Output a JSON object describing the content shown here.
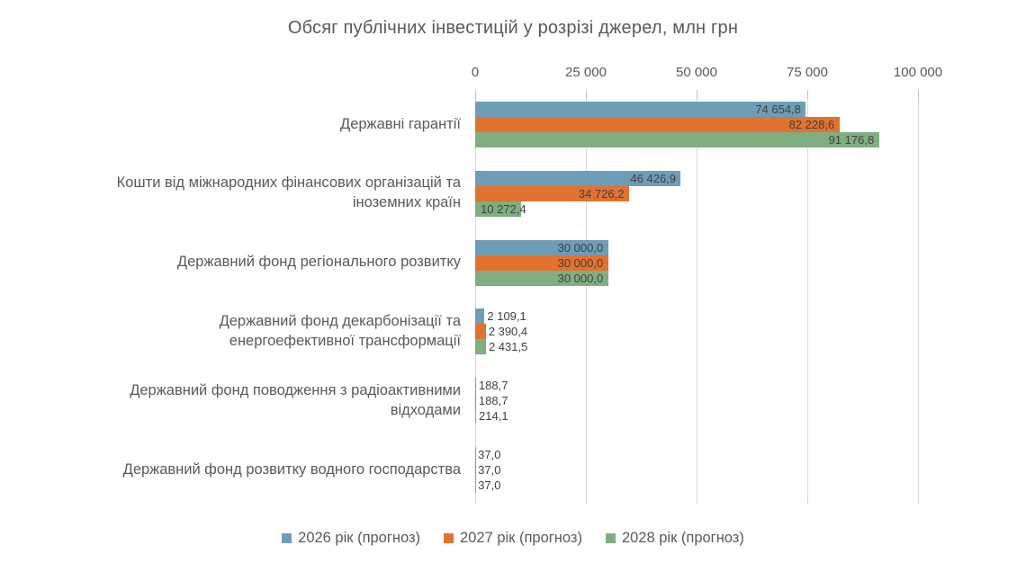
{
  "chart_data": {
    "type": "bar",
    "orientation": "horizontal",
    "title": "Обсяг публічних інвестицій у розрізі джерел, млн грн",
    "units": "млн грн",
    "categories": [
      "Державні гарантії",
      "Кошти від міжнародних фінансових організацій та іноземних країн",
      "Державний фонд регіонального розвитку",
      "Державний фонд декарбонізації та енергоефективної трансформації",
      "Державний фонд поводження з радіоактивними відходами",
      "Державний фонд розвитку водного господарства"
    ],
    "categories_wrapped": [
      "Державні гарантії",
      "Кошти від міжнародних фінансових організацій та\nіноземних країн",
      "Державний фонд регіонального розвитку",
      "Державний фонд декарбонізації та\nенергоефективної трансформації",
      "Державний фонд поводження з радіоактивними\nвідходами",
      "Державний фонд розвитку водного господарства"
    ],
    "series": [
      {
        "name": "2026 рік (прогноз)",
        "color": "#6E9DB7",
        "values": [
          74654.8,
          46426.9,
          30000.0,
          2109.1,
          188.7,
          37.0
        ],
        "labels": [
          "74 654,8",
          "46 426,9",
          "30 000,0",
          "2 109,1",
          "188,7",
          "37,0"
        ]
      },
      {
        "name": "2027 рік (прогноз)",
        "color": "#E2722F",
        "values": [
          82228.6,
          34726.2,
          30000.0,
          2390.4,
          188.7,
          37.0
        ],
        "labels": [
          "82 228,6",
          "34 726,2",
          "30 000,0",
          "2 390,4",
          "188,7",
          "37,0"
        ]
      },
      {
        "name": "2028 рік (прогноз)",
        "color": "#80AE80",
        "values": [
          91176.8,
          10272.4,
          30000.0,
          2431.5,
          214.1,
          37.0
        ],
        "labels": [
          "91 176,8",
          "10 272,4",
          "30 000,0",
          "2 431,5",
          "214,1",
          "37,0"
        ]
      }
    ],
    "x_axis": {
      "min": 0,
      "max": 100000,
      "tick_interval": 25000,
      "tick_labels": [
        "0",
        "25 000",
        "50 000",
        "75 000",
        "100 000"
      ]
    },
    "legend_position": "bottom",
    "grid": "vertical",
    "colors": {
      "gridline": "#D9D9D9",
      "axis_tick": "#BFBFBF",
      "text": "#595959",
      "data_label": "#404040",
      "background": "#FFFFFF"
    }
  }
}
